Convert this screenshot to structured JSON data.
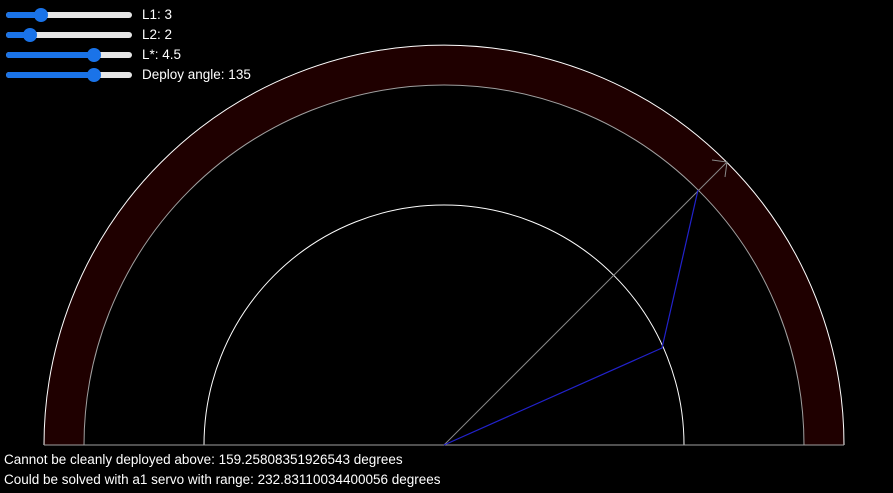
{
  "controls": {
    "sliders": [
      {
        "label": "L1: 3",
        "fraction": 0.25
      },
      {
        "label": "L2: 2",
        "fraction": 0.15
      },
      {
        "label": "L*: 4.5",
        "fraction": 0.72
      },
      {
        "label": "Deploy angle: 135",
        "fraction": 0.72
      }
    ]
  },
  "status": {
    "line1": "Cannot be cleanly deployed above: 159.25808351926543 degrees",
    "line2": "Could be solved with a1 servo with range: 232.83110034400056 degrees"
  },
  "colors": {
    "background": "#000000",
    "band_fill": "#1f0000",
    "circle_stroke": "#ffffff",
    "arm_stroke": "#2222cc",
    "arrow_stroke": "#888888",
    "slider_accent": "#1a73e8",
    "slider_track": "#e6e6e6"
  }
}
